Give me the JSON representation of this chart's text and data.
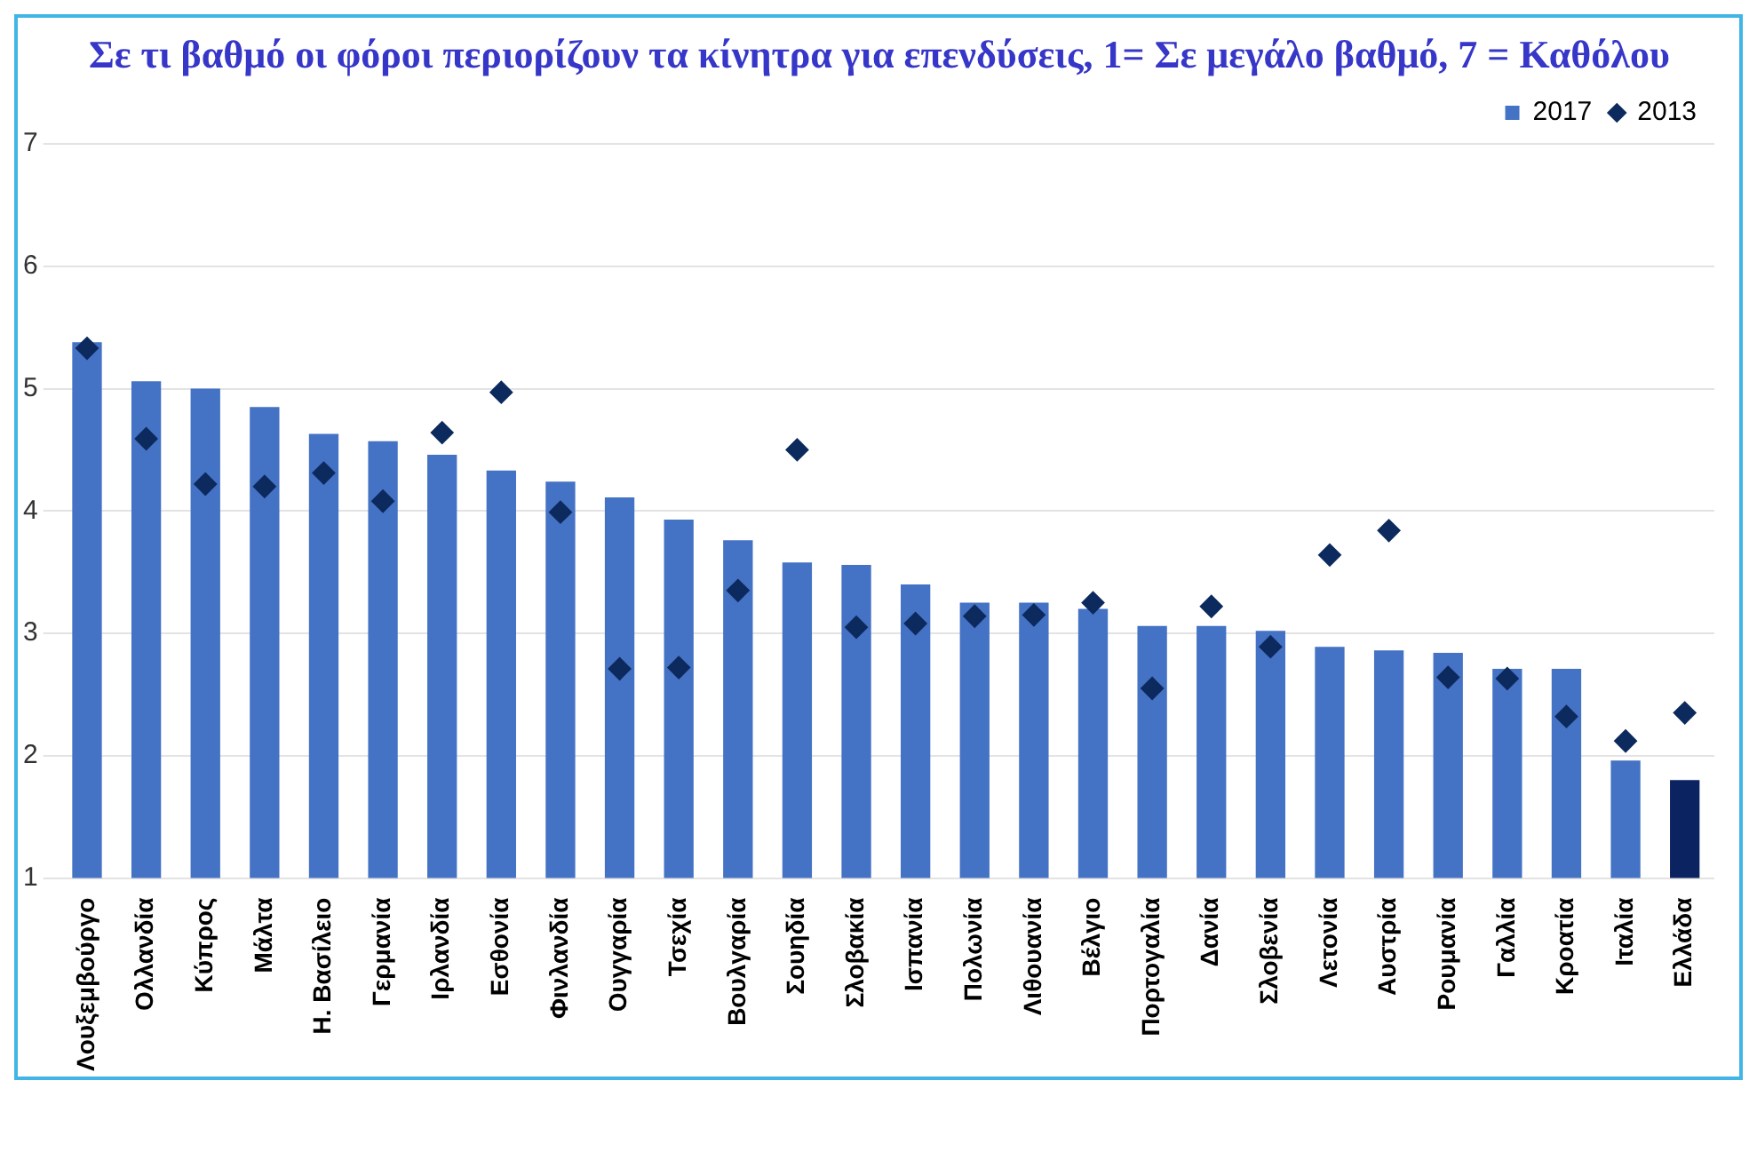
{
  "chart_data": {
    "type": "bar",
    "title": "Σε τι βαθμό οι φόροι περιορίζουν τα κίνητρα για επενδύσεις, 1= Σε μεγάλο βαθμό, 7 = Καθόλου",
    "categories": [
      "Λουξεμβούργο",
      "Ολλανδία",
      "Κύπρος",
      "Μάλτα",
      "Η. Βασίλειο",
      "Γερμανία",
      "Ιρλανδία",
      "Εσθονία",
      "Φινλανδία",
      "Ουγγαρία",
      "Τσεχία",
      "Βουλγαρία",
      "Σουηδία",
      "Σλοβακία",
      "Ισπανία",
      "Πολωνία",
      "Λιθουανία",
      "Βέλγιο",
      "Πορτογαλία",
      "Δανία",
      "Σλοβενία",
      "Λετονία",
      "Αυστρία",
      "Ρουμανία",
      "Γαλλία",
      "Κροατία",
      "Ιταλία",
      "Ελλάδα"
    ],
    "series": [
      {
        "name": "2017",
        "color": "#4472c4",
        "colors": [
          "#4472c4",
          "#4472c4",
          "#4472c4",
          "#4472c4",
          "#4472c4",
          "#4472c4",
          "#4472c4",
          "#4472c4",
          "#4472c4",
          "#4472c4",
          "#4472c4",
          "#4472c4",
          "#4472c4",
          "#4472c4",
          "#4472c4",
          "#4472c4",
          "#4472c4",
          "#4472c4",
          "#4472c4",
          "#4472c4",
          "#4472c4",
          "#4472c4",
          "#4472c4",
          "#4472c4",
          "#4472c4",
          "#4472c4",
          "#4472c4",
          "#0b2361"
        ],
        "values": [
          5.38,
          5.06,
          5.0,
          4.85,
          4.63,
          4.57,
          4.46,
          4.33,
          4.24,
          4.11,
          3.93,
          3.76,
          3.58,
          3.56,
          3.4,
          3.25,
          3.25,
          3.2,
          3.06,
          3.06,
          3.02,
          2.89,
          2.86,
          2.84,
          2.71,
          2.71,
          1.96,
          1.8
        ]
      },
      {
        "name": "2013",
        "type": "scatter",
        "marker": "diamond",
        "color": "#0d2a5e",
        "x": [
          "Λουξεμβούργο",
          "Ολλανδία",
          "Κύπρος",
          "Μάλτα",
          "Η. Βασίλειο",
          "Γερμανία",
          "Ιρλανδία",
          "Εσθονία",
          "Φινλανδία",
          "Ουγγαρία",
          "Τσεχία",
          "Βουλγαρία",
          "Σουηδία",
          "Σλοβακία",
          "Ισπανία",
          "Πολωνία",
          "Λιθουανία",
          "Βέλγιο",
          "Πορτογαλία",
          "Δανία",
          "Σλοβενία",
          "Λετονία",
          "Αυστρία",
          "Ρουμανία",
          "Γαλλία",
          "Κροατία",
          "Ιταλία",
          "Ελλάδα"
        ],
        "values": [
          5.33,
          4.59,
          4.22,
          4.2,
          4.31,
          4.08,
          4.64,
          4.97,
          3.99,
          2.71,
          2.72,
          3.35,
          4.5,
          3.05,
          3.08,
          3.14,
          3.15,
          3.25,
          2.55,
          3.22,
          2.89,
          3.64,
          3.84,
          2.64,
          2.63,
          2.32,
          2.12,
          2.35
        ]
      }
    ],
    "ylim": [
      1,
      7
    ],
    "yticks": [
      1,
      2,
      3,
      4,
      5,
      6,
      7
    ],
    "grid": "y",
    "legend": "top right"
  }
}
